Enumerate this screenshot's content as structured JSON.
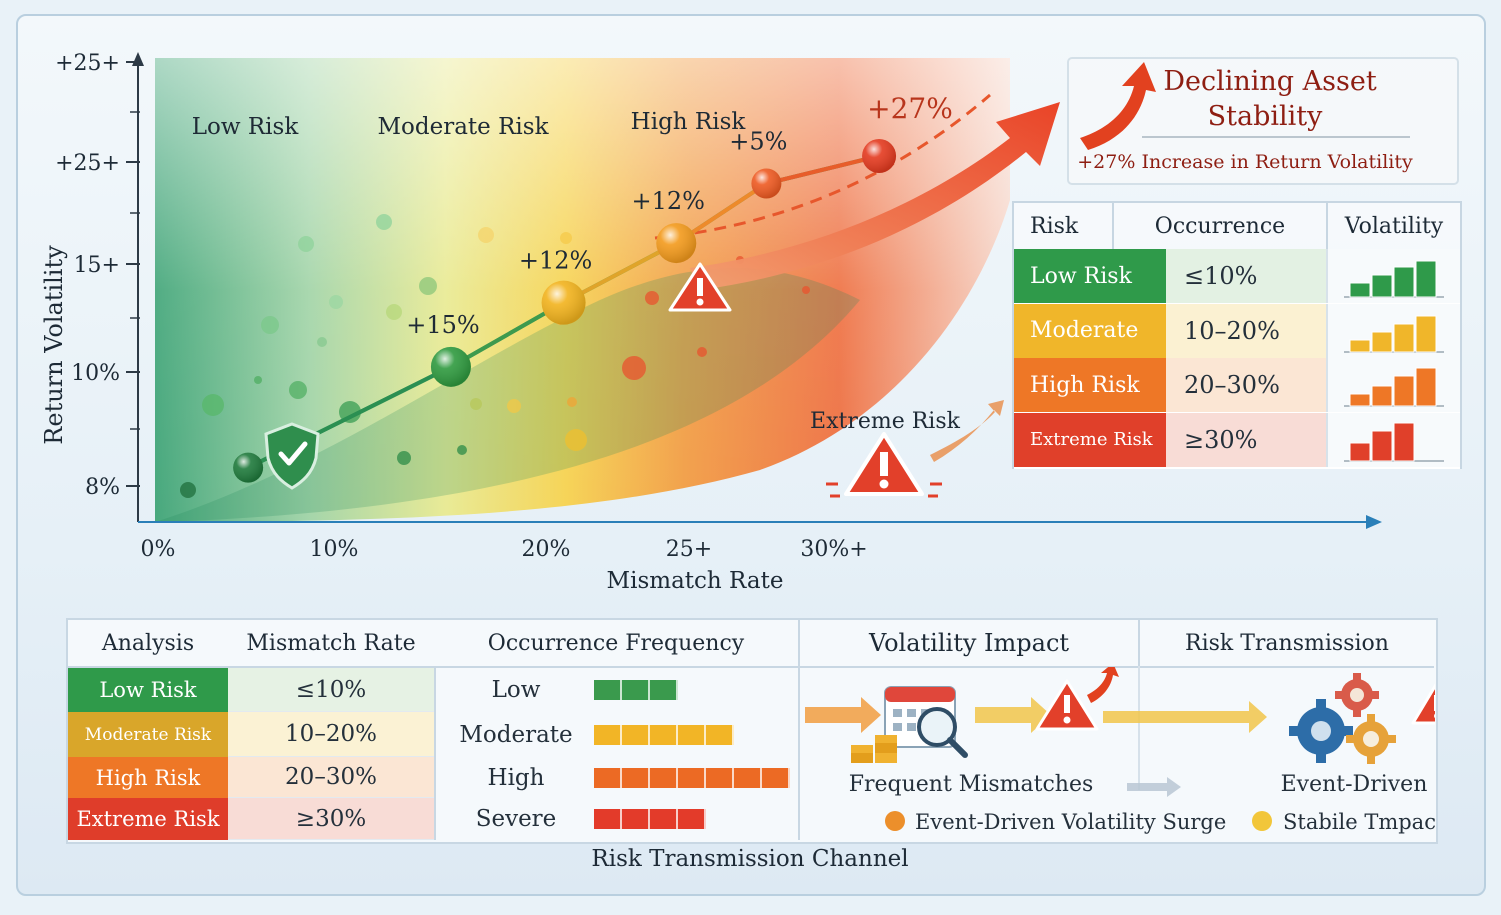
{
  "chart_data": {
    "type": "line",
    "xlabel": "Mismatch Rate",
    "ylabel": "Return Volatility",
    "x_ticks": [
      "0%",
      "10%",
      "20%",
      "25+",
      "30%+"
    ],
    "y_ticks": [
      "8%",
      "10%",
      "15+",
      "+25+",
      "+25+"
    ],
    "zones": [
      "Low Risk",
      "Moderate Risk",
      "High Risk"
    ],
    "series": [
      {
        "x": [
          4,
          13,
          18,
          23,
          27,
          32
        ],
        "y": [
          0.2,
          1.3,
          2.0,
          2.65,
          3.3,
          3.6
        ],
        "point_labels": [
          "",
          "+15%",
          "+12%",
          "+12%",
          "+5%",
          ""
        ]
      }
    ],
    "projection_label": "+27%",
    "colors": {
      "low": "#2f9a4a",
      "moderate": "#f1b51c",
      "high": "#ef7a1f",
      "extreme": "#e03a24"
    }
  },
  "callout": {
    "title_line1": "Declining Asset",
    "title_line2": "Stability",
    "subtitle": "+27% Increase in Return Volatility"
  },
  "extreme_label": "Extreme Risk",
  "right_table": {
    "headers": [
      "Risk",
      "Occurrence",
      "Volatility"
    ],
    "rows": [
      {
        "risk": "Low Risk",
        "occurrence": "≤10%",
        "color": "#2f9a4a",
        "tint": "#e3f1e3",
        "bars": [
          0.35,
          0.55,
          0.75,
          0.9
        ]
      },
      {
        "risk": "Moderate",
        "occurrence": "10–20%",
        "color": "#f0b62a",
        "tint": "#fbf1d2",
        "bars": [
          0.3,
          0.5,
          0.7,
          0.9
        ]
      },
      {
        "risk": "High Risk",
        "occurrence": "20–30%",
        "color": "#ee7726",
        "tint": "#fbe6d4",
        "bars": [
          0.3,
          0.5,
          0.75,
          0.95
        ]
      },
      {
        "risk": "Extreme Risk",
        "occurrence": "≥30%",
        "color": "#e0402a",
        "tint": "#f8dcd6",
        "bars": [
          0.45,
          0.75,
          0.95
        ]
      }
    ]
  },
  "bottom_table": {
    "headers": [
      "Analysis",
      "Mismatch Rate",
      "Occurrence Frequency",
      "Volatility Impact",
      "Risk Transmission"
    ],
    "rows": [
      {
        "analysis": "Low Risk",
        "mismatch": "≤10%",
        "frequency": "Low",
        "segments": 3,
        "seg_color": "#3a9a4d",
        "color": "#2f9a4a",
        "tint": "#e6f2e4"
      },
      {
        "analysis": "Moderate Risk",
        "mismatch": "10–20%",
        "frequency": "Moderate",
        "segments": 5,
        "seg_color": "#f2b526",
        "color": "#d9a62a",
        "tint": "#fbf2d4"
      },
      {
        "analysis": "High Risk",
        "mismatch": "20–30%",
        "frequency": "High",
        "segments": 7,
        "seg_color": "#ec6a24",
        "color": "#ee7726",
        "tint": "#fbe6d4"
      },
      {
        "analysis": "Extreme Risk",
        "mismatch": "≥30%",
        "frequency": "Severe",
        "segments": 4,
        "seg_color": "#e33b2a",
        "color": "#df3d2a",
        "tint": "#f8dcd6"
      }
    ],
    "impact_caption": "Frequent Mismatches",
    "impact_legend": "Event-Driven Volatility Surge",
    "transmission_caption": "Event-Driven",
    "transmission_legend": "Stabile Tmpact",
    "footer": "Risk Transmission Channel"
  }
}
